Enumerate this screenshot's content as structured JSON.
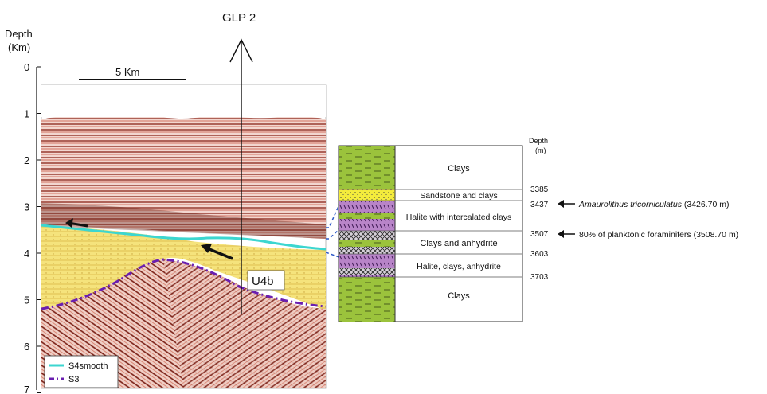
{
  "well_name": "GLP 2",
  "depth_axis": {
    "title_line1": "Depth",
    "title_line2": "(Km)",
    "ticks": [
      "0",
      "1",
      "2",
      "3",
      "4",
      "5",
      "6",
      "7"
    ]
  },
  "scale_bar": {
    "label": "5 Km"
  },
  "unit_label": "U4b",
  "legend": [
    {
      "name": "S4smooth",
      "color": "#3cd6d0",
      "style": "solid"
    },
    {
      "name": "S3",
      "color": "#6a1fb0",
      "style": "dash-dot"
    }
  ],
  "column": {
    "depth_title_line1": "Depth",
    "depth_title_line2": "(m)",
    "units": [
      {
        "label": "Clays",
        "lithology": "clay"
      },
      {
        "label": "Sandstone and clays",
        "lithology": "sand"
      },
      {
        "label": "Halite with intercalated clays",
        "lithology": "halite"
      },
      {
        "label": "Clays and anhydrite",
        "lithology": "anhydrite"
      },
      {
        "label": "Halite, clays, anhydrite",
        "lithology": "halite-anhydrite"
      },
      {
        "label": "Clays",
        "lithology": "clay"
      }
    ],
    "boundaries": [
      "3385",
      "3437",
      "3507",
      "3603",
      "3703"
    ],
    "annotations": [
      {
        "taxon": "Amaurolithus tricorniculatus",
        "suffix": " (3426.70 m)"
      },
      {
        "taxon": "",
        "suffix": "80% of planktonic foraminifers (3508.70 m)"
      }
    ]
  },
  "colors": {
    "clay": "#9bc33c",
    "sand": "#f4ec3c",
    "halite": "#b884c8",
    "seismic_dark": "#6a1a12",
    "seismic_red": "#c84b3a",
    "yellow_unit": "#f4e27a"
  }
}
